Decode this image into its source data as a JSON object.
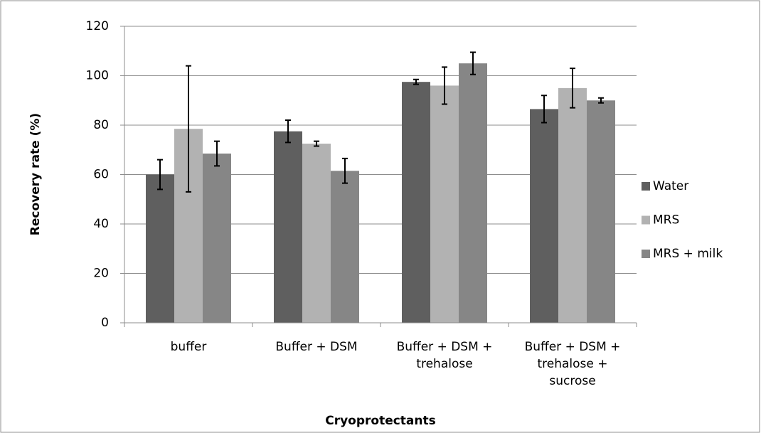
{
  "chart_data": {
    "type": "bar",
    "x_label": "Cryoprotectants",
    "y_label": "Recovery rate (%)",
    "categories": [
      "buffer",
      "Buffer + DSM",
      "Buffer + DSM +\ntrehalose",
      "Buffer + DSM +\ntrehalose +\nsucrose"
    ],
    "series": [
      {
        "name": "Water",
        "color": "#5f5f5f",
        "values": [
          60,
          77.5,
          97.5,
          86.5
        ],
        "errors": [
          6,
          4.5,
          1,
          5.5
        ]
      },
      {
        "name": "MRS",
        "color": "#b2b2b2",
        "values": [
          78.5,
          72.5,
          96,
          95
        ],
        "errors": [
          25.5,
          1,
          7.5,
          8
        ]
      },
      {
        "name": "MRS + milk",
        "color": "#868686",
        "values": [
          68.5,
          61.5,
          105,
          90
        ],
        "errors": [
          5,
          5,
          4.5,
          1
        ]
      }
    ],
    "ylim": [
      0,
      120
    ],
    "yticks": [
      0,
      20,
      40,
      60,
      80,
      100,
      120
    ],
    "grid": true,
    "legend": "right"
  }
}
